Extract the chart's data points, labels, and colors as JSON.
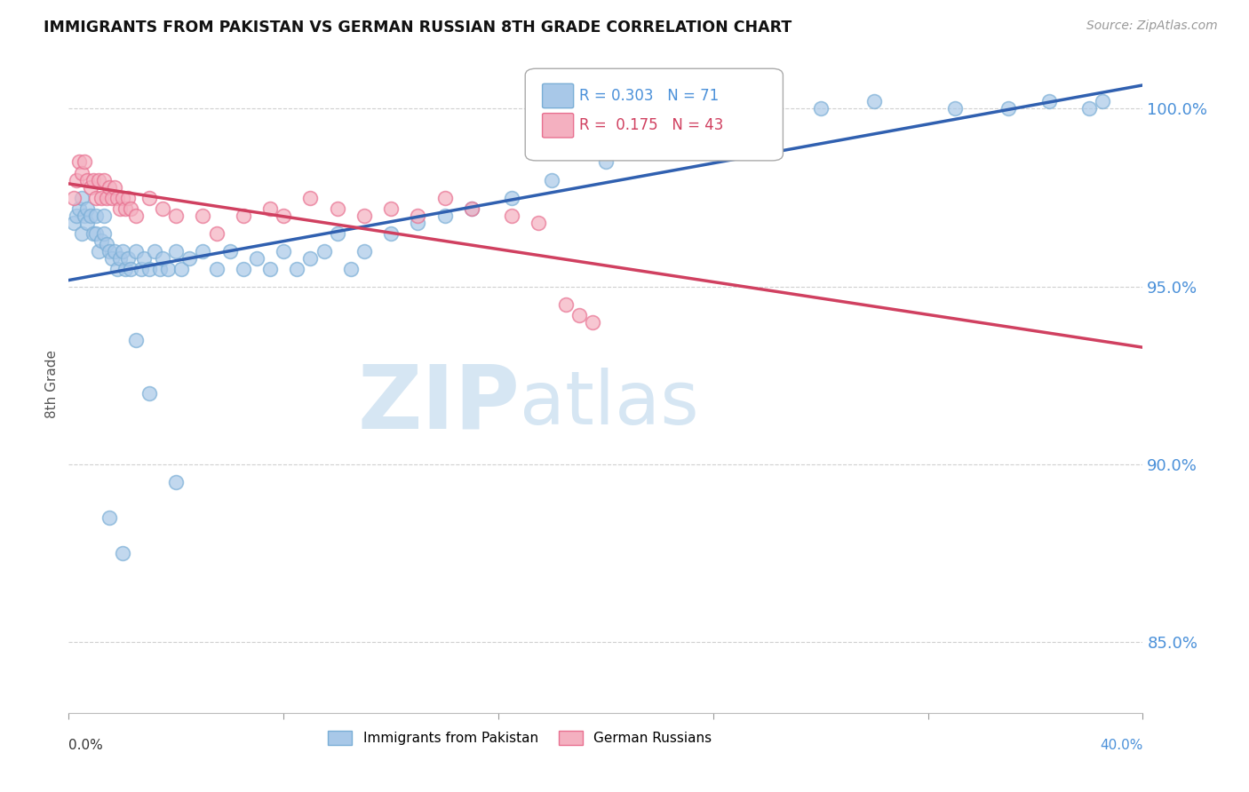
{
  "title": "IMMIGRANTS FROM PAKISTAN VS GERMAN RUSSIAN 8TH GRADE CORRELATION CHART",
  "source": "Source: ZipAtlas.com",
  "ylabel": "8th Grade",
  "xmin": 0.0,
  "xmax": 40.0,
  "ymin": 83.0,
  "ymax": 101.5,
  "yticks": [
    85.0,
    90.0,
    95.0,
    100.0
  ],
  "ytick_labels": [
    "85.0%",
    "90.0%",
    "95.0%",
    "100.0%"
  ],
  "blue_label": "Immigrants from Pakistan",
  "pink_label": "German Russians",
  "blue_color": "#a8c8e8",
  "blue_edge_color": "#7aaed6",
  "pink_color": "#f4b0c0",
  "pink_edge_color": "#e87090",
  "blue_R": 0.303,
  "blue_N": 71,
  "pink_R": 0.175,
  "pink_N": 43,
  "blue_line_color": "#3060b0",
  "pink_line_color": "#d04060",
  "ytick_color": "#4a90d9",
  "grid_color": "#d0d0d0",
  "watermark_color": "#cce0f0",
  "blue_scatter_x": [
    0.2,
    0.3,
    0.4,
    0.5,
    0.5,
    0.6,
    0.7,
    0.7,
    0.8,
    0.9,
    1.0,
    1.0,
    1.1,
    1.2,
    1.3,
    1.3,
    1.4,
    1.5,
    1.6,
    1.7,
    1.8,
    1.9,
    2.0,
    2.1,
    2.2,
    2.3,
    2.5,
    2.7,
    2.8,
    3.0,
    3.2,
    3.4,
    3.5,
    3.7,
    4.0,
    4.2,
    4.5,
    5.0,
    5.5,
    6.0,
    6.5,
    7.0,
    7.5,
    8.0,
    8.5,
    9.0,
    9.5,
    10.0,
    10.5,
    11.0,
    12.0,
    13.0,
    14.0,
    15.0,
    16.5,
    18.0,
    20.0,
    22.0,
    25.0,
    28.0,
    30.0,
    33.0,
    35.0,
    36.5,
    38.0,
    38.5,
    1.5,
    2.0,
    2.5,
    3.0,
    4.0
  ],
  "blue_scatter_y": [
    96.8,
    97.0,
    97.2,
    96.5,
    97.5,
    97.0,
    96.8,
    97.2,
    97.0,
    96.5,
    96.5,
    97.0,
    96.0,
    96.3,
    96.5,
    97.0,
    96.2,
    96.0,
    95.8,
    96.0,
    95.5,
    95.8,
    96.0,
    95.5,
    95.8,
    95.5,
    96.0,
    95.5,
    95.8,
    95.5,
    96.0,
    95.5,
    95.8,
    95.5,
    96.0,
    95.5,
    95.8,
    96.0,
    95.5,
    96.0,
    95.5,
    95.8,
    95.5,
    96.0,
    95.5,
    95.8,
    96.0,
    96.5,
    95.5,
    96.0,
    96.5,
    96.8,
    97.0,
    97.2,
    97.5,
    98.0,
    98.5,
    99.0,
    99.5,
    100.0,
    100.2,
    100.0,
    100.0,
    100.2,
    100.0,
    100.2,
    88.5,
    87.5,
    93.5,
    92.0,
    89.5
  ],
  "pink_scatter_x": [
    0.2,
    0.3,
    0.4,
    0.5,
    0.6,
    0.7,
    0.8,
    0.9,
    1.0,
    1.1,
    1.2,
    1.3,
    1.4,
    1.5,
    1.6,
    1.7,
    1.8,
    1.9,
    2.0,
    2.1,
    2.2,
    2.3,
    2.5,
    3.0,
    3.5,
    4.0,
    5.0,
    5.5,
    6.5,
    7.5,
    8.0,
    9.0,
    10.0,
    11.0,
    12.0,
    13.0,
    14.0,
    15.0,
    16.5,
    17.5,
    18.5,
    19.0,
    19.5
  ],
  "pink_scatter_y": [
    97.5,
    98.0,
    98.5,
    98.2,
    98.5,
    98.0,
    97.8,
    98.0,
    97.5,
    98.0,
    97.5,
    98.0,
    97.5,
    97.8,
    97.5,
    97.8,
    97.5,
    97.2,
    97.5,
    97.2,
    97.5,
    97.2,
    97.0,
    97.5,
    97.2,
    97.0,
    97.0,
    96.5,
    97.0,
    97.2,
    97.0,
    97.5,
    97.2,
    97.0,
    97.2,
    97.0,
    97.5,
    97.2,
    97.0,
    96.8,
    94.5,
    94.2,
    94.0
  ]
}
